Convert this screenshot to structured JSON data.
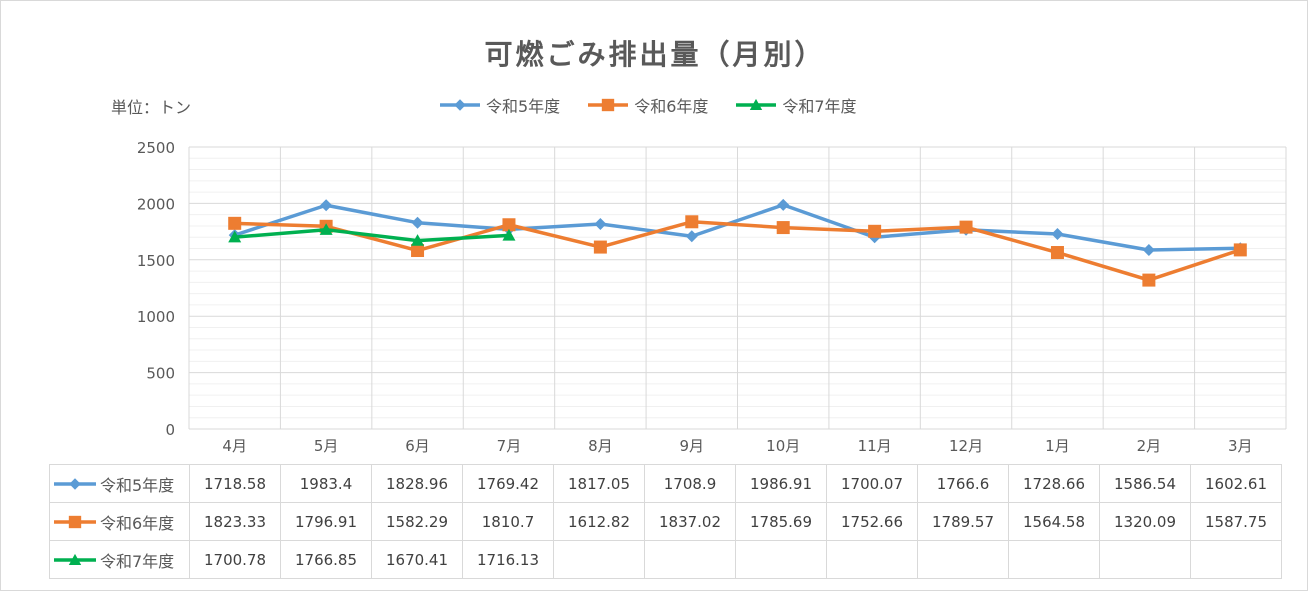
{
  "chart_data": {
    "type": "line",
    "title": "可燃ごみ排出量（月別）",
    "unit_label": "単位：トン",
    "categories": [
      "4月",
      "5月",
      "6月",
      "7月",
      "8月",
      "9月",
      "10月",
      "11月",
      "12月",
      "1月",
      "2月",
      "3月"
    ],
    "ylim": [
      0,
      2500
    ],
    "yticks": [
      0,
      500,
      1000,
      1500,
      2000,
      2500
    ],
    "ytick_labels": [
      "0",
      "500",
      "1000",
      "1500",
      "2000",
      "2500"
    ],
    "series": [
      {
        "name": "令和5年度",
        "color": "#5b9bd5",
        "marker": "diamond",
        "values": [
          1718.58,
          1983.4,
          1828.96,
          1769.42,
          1817.05,
          1708.9,
          1986.91,
          1700.07,
          1766.6,
          1728.66,
          1586.54,
          1602.61
        ],
        "labels": [
          "1718.58",
          "1983.4",
          "1828.96",
          "1769.42",
          "1817.05",
          "1708.9",
          "1986.91",
          "1700.07",
          "1766.6",
          "1728.66",
          "1586.54",
          "1602.61"
        ]
      },
      {
        "name": "令和6年度",
        "color": "#ed7d31",
        "marker": "square",
        "values": [
          1823.33,
          1796.91,
          1582.29,
          1810.7,
          1612.82,
          1837.02,
          1785.69,
          1752.66,
          1789.57,
          1564.58,
          1320.09,
          1587.75
        ],
        "labels": [
          "1823.33",
          "1796.91",
          "1582.29",
          "1810.7",
          "1612.82",
          "1837.02",
          "1785.69",
          "1752.66",
          "1789.57",
          "1564.58",
          "1320.09",
          "1587.75"
        ]
      },
      {
        "name": "令和7年度",
        "color": "#00b050",
        "marker": "triangle",
        "values": [
          1700.78,
          1766.85,
          1670.41,
          1716.13,
          null,
          null,
          null,
          null,
          null,
          null,
          null,
          null
        ],
        "labels": [
          "1700.78",
          "1766.85",
          "1670.41",
          "1716.13",
          "",
          "",
          "",
          "",
          "",
          "",
          "",
          ""
        ]
      }
    ],
    "legend_position": "top",
    "grid": true,
    "data_table": true
  }
}
